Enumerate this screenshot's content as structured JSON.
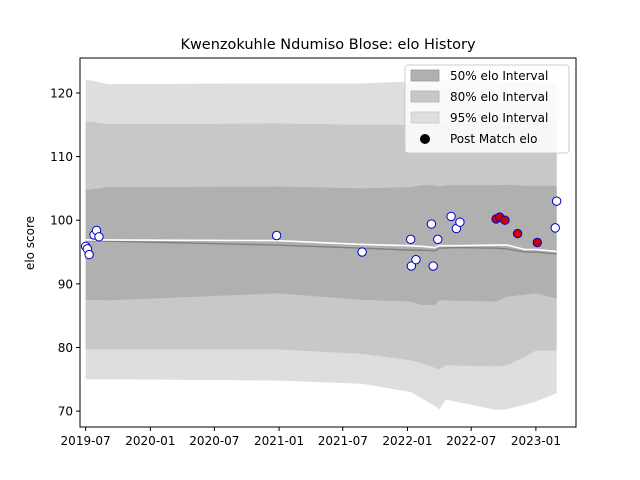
{
  "chart_data": {
    "type": "line",
    "title": "Kwenzokuhle Ndumiso Blose: elo History",
    "xlabel": "",
    "ylabel": "elo score",
    "xlim": [
      "2019-06-15",
      "2023-04-25"
    ],
    "ylim": [
      67.5,
      125.5
    ],
    "x_ticks": [
      {
        "date": "2019-07-01",
        "label": "2019-07"
      },
      {
        "date": "2020-01-01",
        "label": "2020-01"
      },
      {
        "date": "2020-07-01",
        "label": "2020-07"
      },
      {
        "date": "2021-01-01",
        "label": "2021-01"
      },
      {
        "date": "2021-07-01",
        "label": "2021-07"
      },
      {
        "date": "2022-01-01",
        "label": "2022-01"
      },
      {
        "date": "2022-07-01",
        "label": "2022-07"
      },
      {
        "date": "2023-01-01",
        "label": "2023-01"
      }
    ],
    "y_ticks": [
      70,
      80,
      90,
      100,
      110,
      120
    ],
    "legend": {
      "placement": "upper right",
      "entries": [
        {
          "label": "50% elo Interval",
          "color": "#b0b0b0",
          "kind": "patch"
        },
        {
          "label": "80% elo Interval",
          "color": "#c8c8c8",
          "kind": "patch"
        },
        {
          "label": "95% elo Interval",
          "color": "#dedede",
          "kind": "patch"
        },
        {
          "label": "Post Match elo",
          "color": "#000000",
          "kind": "marker"
        }
      ]
    },
    "colors": {
      "band50": "#b0b0b0",
      "band80": "#c8c8c8",
      "band95": "#dedede",
      "mean_line": "#808080",
      "median_line": "#ffffff",
      "marker_edge": "#0000cc",
      "marker_fill_default": "#ffffff",
      "marker_fill_highlight": "#cc0000"
    },
    "series": [
      {
        "key": "mean",
        "x": [
          "2019-07-01",
          "2019-09-01",
          "2020-12-25",
          "2021-08-25",
          "2022-01-10",
          "2022-02-10",
          "2022-03-20",
          "2022-04-01",
          "2022-05-20",
          "2022-09-10",
          "2022-10-10",
          "2022-12-01",
          "2023-01-01",
          "2023-03-01"
        ],
        "y": [
          96.8,
          96.7,
          96.1,
          95.6,
          95.3,
          95.3,
          95.2,
          95.6,
          95.7,
          95.6,
          95.5,
          95.0,
          95.0,
          94.7
        ]
      },
      {
        "key": "median",
        "x": [
          "2019-07-01",
          "2019-09-01",
          "2020-12-25",
          "2021-08-25",
          "2022-01-10",
          "2022-02-10",
          "2022-03-20",
          "2022-04-01",
          "2022-05-20",
          "2022-09-10",
          "2022-10-10",
          "2022-12-01",
          "2023-01-01",
          "2023-03-01"
        ],
        "y": [
          96.9,
          96.9,
          96.8,
          96.2,
          96.0,
          95.9,
          95.7,
          96.0,
          96.0,
          96.1,
          96.1,
          95.4,
          95.4,
          95.1
        ]
      }
    ],
    "bands": [
      {
        "key": "band95",
        "x": [
          "2019-07-01",
          "2019-07-15",
          "2019-09-01",
          "2020-12-25",
          "2021-08-25",
          "2022-01-10",
          "2022-02-10",
          "2022-03-20",
          "2022-04-01",
          "2022-04-20",
          "2022-09-10",
          "2022-10-10",
          "2022-12-01",
          "2023-01-01",
          "2023-03-01"
        ],
        "lower": [
          75.0,
          75.0,
          75.0,
          74.8,
          74.3,
          73.0,
          72.0,
          70.8,
          70.3,
          71.8,
          70.2,
          70.3,
          71.0,
          71.5,
          72.8
        ],
        "upper": [
          122.0,
          122.0,
          121.4,
          121.5,
          121.5,
          121.8,
          121.7,
          121.9,
          122.0,
          121.9,
          121.9,
          121.8,
          121.7,
          121.6,
          121.6
        ]
      },
      {
        "key": "band80",
        "x": [
          "2019-07-01",
          "2019-07-15",
          "2019-09-01",
          "2020-12-25",
          "2021-08-25",
          "2022-01-10",
          "2022-02-10",
          "2022-03-20",
          "2022-04-01",
          "2022-04-20",
          "2022-09-10",
          "2022-10-10",
          "2022-12-01",
          "2023-01-01",
          "2023-03-01"
        ],
        "lower": [
          79.7,
          79.7,
          79.7,
          79.7,
          79.0,
          78.0,
          77.5,
          76.8,
          76.5,
          77.2,
          77.0,
          77.2,
          78.5,
          79.5,
          79.5
        ],
        "upper": [
          115.5,
          115.5,
          115.1,
          115.2,
          115.0,
          115.0,
          115.4,
          115.6,
          115.4,
          115.5,
          115.6,
          115.6,
          115.6,
          115.6,
          115.6
        ]
      },
      {
        "key": "band50",
        "x": [
          "2019-07-01",
          "2019-07-15",
          "2019-09-01",
          "2020-12-25",
          "2021-08-25",
          "2022-01-10",
          "2022-02-10",
          "2022-03-20",
          "2022-04-01",
          "2022-04-20",
          "2022-09-10",
          "2022-10-10",
          "2022-12-01",
          "2023-01-01",
          "2023-03-01"
        ],
        "lower": [
          87.5,
          87.5,
          87.4,
          88.5,
          87.5,
          87.2,
          86.7,
          86.7,
          87.4,
          87.4,
          87.2,
          88.0,
          88.3,
          88.5,
          87.7
        ],
        "upper": [
          104.8,
          104.8,
          105.2,
          105.3,
          105.0,
          105.2,
          105.5,
          105.5,
          105.3,
          105.5,
          105.5,
          105.6,
          105.4,
          105.4,
          105.4
        ]
      }
    ],
    "points": [
      {
        "x": "2019-07-01",
        "y": 95.9,
        "highlight": false
      },
      {
        "x": "2019-07-06",
        "y": 95.5,
        "highlight": false
      },
      {
        "x": "2019-07-11",
        "y": 94.6,
        "highlight": false
      },
      {
        "x": "2019-07-25",
        "y": 97.7,
        "highlight": false
      },
      {
        "x": "2019-08-01",
        "y": 98.4,
        "highlight": false
      },
      {
        "x": "2019-08-08",
        "y": 97.4,
        "highlight": false
      },
      {
        "x": "2020-12-25",
        "y": 97.6,
        "highlight": false
      },
      {
        "x": "2021-08-25",
        "y": 95.0,
        "highlight": false
      },
      {
        "x": "2022-01-10",
        "y": 97.0,
        "highlight": false
      },
      {
        "x": "2022-01-12",
        "y": 92.8,
        "highlight": false
      },
      {
        "x": "2022-01-25",
        "y": 93.8,
        "highlight": false
      },
      {
        "x": "2022-03-10",
        "y": 99.4,
        "highlight": false
      },
      {
        "x": "2022-03-15",
        "y": 92.8,
        "highlight": false
      },
      {
        "x": "2022-03-28",
        "y": 97.0,
        "highlight": false
      },
      {
        "x": "2022-05-05",
        "y": 100.6,
        "highlight": false
      },
      {
        "x": "2022-05-20",
        "y": 98.7,
        "highlight": false
      },
      {
        "x": "2022-05-30",
        "y": 99.7,
        "highlight": false
      },
      {
        "x": "2022-09-10",
        "y": 100.2,
        "highlight": true
      },
      {
        "x": "2022-09-20",
        "y": 100.5,
        "highlight": true
      },
      {
        "x": "2022-10-05",
        "y": 100.0,
        "highlight": true
      },
      {
        "x": "2022-11-10",
        "y": 97.9,
        "highlight": true
      },
      {
        "x": "2023-01-05",
        "y": 96.5,
        "highlight": true
      },
      {
        "x": "2023-02-25",
        "y": 98.8,
        "highlight": false
      },
      {
        "x": "2023-03-01",
        "y": 103.0,
        "highlight": false
      }
    ]
  }
}
